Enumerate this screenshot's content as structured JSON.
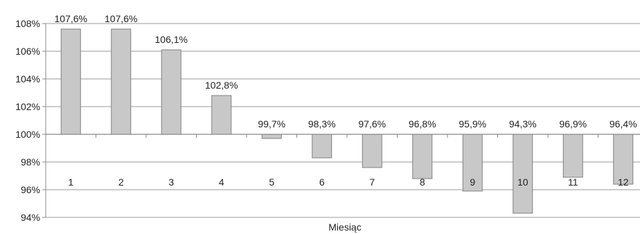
{
  "chart_data": {
    "type": "bar",
    "categories": [
      "1",
      "2",
      "3",
      "4",
      "5",
      "6",
      "7",
      "8",
      "9",
      "10",
      "11",
      "12"
    ],
    "values": [
      107.6,
      107.6,
      106.1,
      102.8,
      99.7,
      98.3,
      97.6,
      96.8,
      95.9,
      94.3,
      96.9,
      96.4
    ],
    "data_labels": [
      "107,6%",
      "107,6%",
      "106,1%",
      "102,8%",
      "99,7%",
      "98,3%",
      "97,6%",
      "96,8%",
      "95,9%",
      "94,3%",
      "96,9%",
      "96,4%"
    ],
    "baseline": 100,
    "ylim": [
      94,
      108
    ],
    "yticks": [
      94,
      96,
      98,
      100,
      102,
      104,
      106,
      108
    ],
    "ytick_labels": [
      "94%",
      "96%",
      "98%",
      "100%",
      "102%",
      "104%",
      "106%",
      "108%"
    ],
    "title": "",
    "xlabel": "Miesiąc",
    "ylabel": "",
    "grid": true,
    "legend": "none",
    "colors": {
      "bar_fill": "#c8c8c8",
      "bar_stroke": "#808080",
      "grid": "#9a9a9a",
      "axis": "#888888",
      "text": "#222222"
    }
  }
}
